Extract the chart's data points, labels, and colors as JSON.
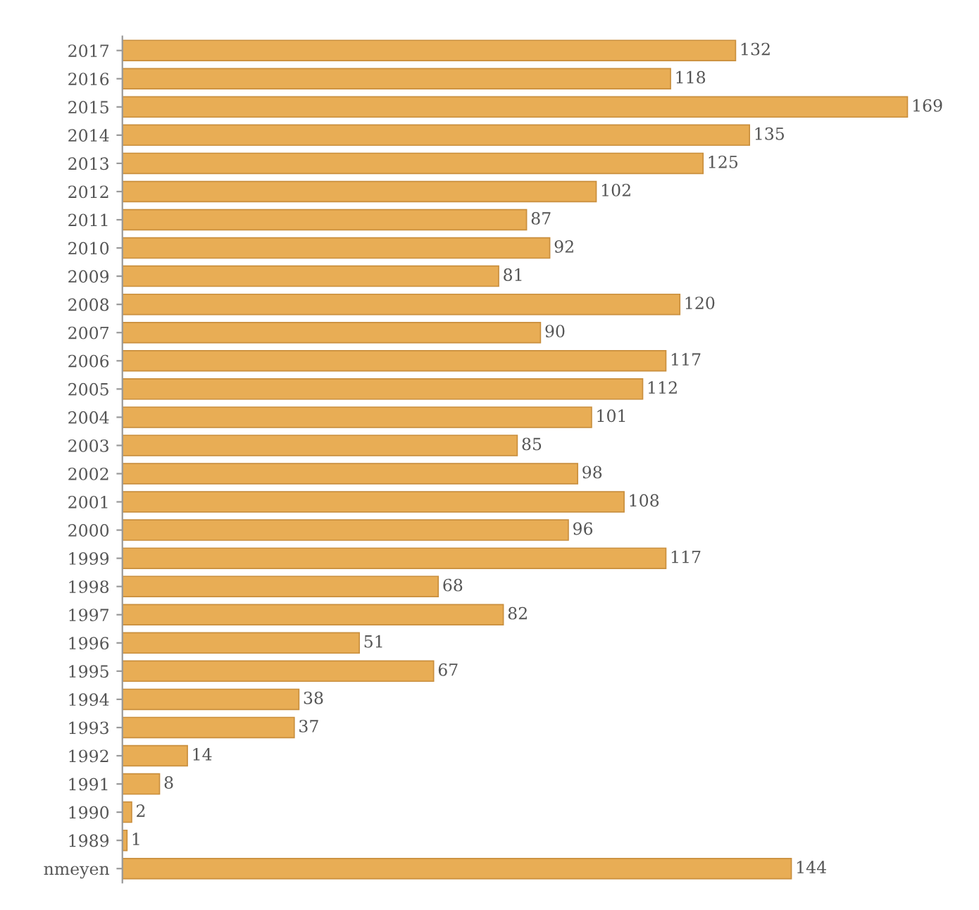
{
  "chart_data": {
    "type": "bar",
    "orientation": "horizontal",
    "data_labels": true,
    "color": "#e8ad55",
    "categories": [
      "2017",
      "2016",
      "2015",
      "2014",
      "2013",
      "2012",
      "2011",
      "2010",
      "2009",
      "2008",
      "2007",
      "2006",
      "2005",
      "2004",
      "2003",
      "2002",
      "2001",
      "2000",
      "1999",
      "1998",
      "1997",
      "1996",
      "1995",
      "1994",
      "1993",
      "1992",
      "1991",
      "1990",
      "1989",
      "nmeyen"
    ],
    "values": [
      132,
      118,
      169,
      135,
      125,
      102,
      87,
      92,
      81,
      120,
      90,
      117,
      112,
      101,
      85,
      98,
      108,
      96,
      117,
      68,
      82,
      51,
      67,
      38,
      37,
      14,
      8,
      2,
      1,
      144
    ]
  }
}
